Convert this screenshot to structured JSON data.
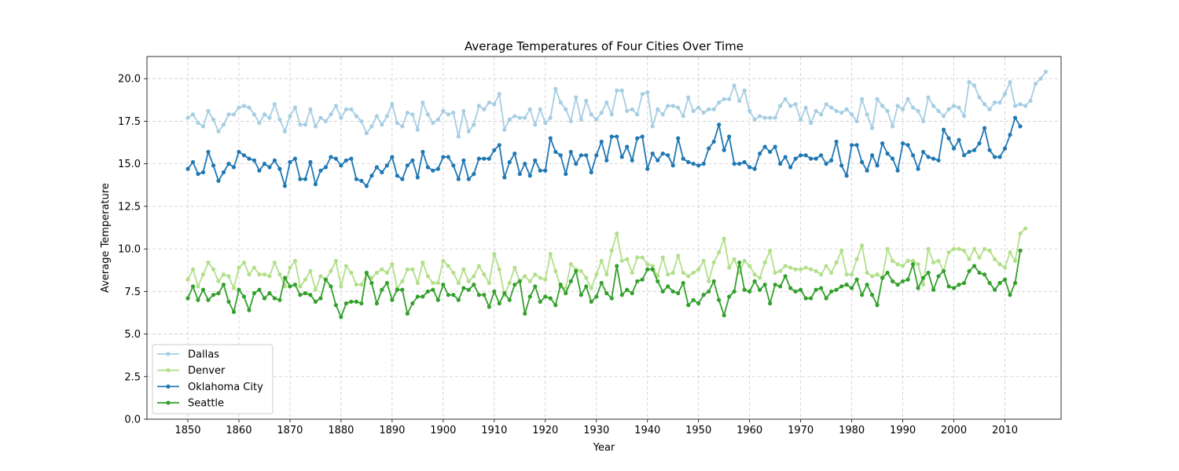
{
  "chart_data": {
    "type": "line",
    "title": "Average Temperatures of Four Cities Over Time",
    "xlabel": "Year",
    "ylabel": "Average Temperature",
    "xlim": [
      1842,
      2021
    ],
    "ylim": [
      0,
      21.3
    ],
    "xticks": [
      "1850",
      "1860",
      "1870",
      "1880",
      "1890",
      "1900",
      "1910",
      "1920",
      "1930",
      "1940",
      "1950",
      "1960",
      "1970",
      "1980",
      "1990",
      "2000",
      "2010"
    ],
    "yticks": [
      "0.0",
      "2.5",
      "5.0",
      "7.5",
      "10.0",
      "12.5",
      "15.0",
      "17.5",
      "20.0"
    ],
    "grid": true,
    "legend": "lower-left",
    "x_start": 1850,
    "x_end": 2013,
    "series": [
      {
        "name": "Dallas",
        "color": "#a6cee3",
        "values": [
          17.7,
          17.9,
          17.4,
          17.2,
          18.1,
          17.6,
          16.9,
          17.3,
          17.9,
          17.9,
          18.3,
          18.4,
          18.3,
          17.9,
          17.4,
          17.9,
          17.7,
          18.5,
          17.6,
          16.9,
          17.8,
          18.3,
          17.3,
          17.3,
          18.2,
          17.2,
          17.7,
          17.5,
          17.9,
          18.4,
          17.7,
          18.2,
          18.2,
          17.8,
          17.5,
          16.8,
          17.2,
          17.8,
          17.3,
          17.8,
          18.5,
          17.4,
          17.2,
          18.0,
          17.9,
          17.0,
          18.6,
          17.9,
          17.4,
          17.6,
          18.1,
          17.9,
          18.0,
          16.6,
          18.1,
          16.9,
          17.3,
          18.4,
          18.2,
          18.6,
          18.5,
          19.1,
          17.0,
          17.6,
          17.8,
          17.7,
          17.7,
          18.2,
          17.3,
          18.2,
          17.4,
          17.7,
          19.4,
          18.6,
          18.2,
          17.5,
          18.9,
          17.6,
          18.7,
          17.9,
          17.6,
          18.0,
          18.6,
          17.9,
          19.3,
          19.3,
          18.1,
          18.2,
          17.9,
          19.1,
          19.2,
          17.2,
          18.2,
          17.9,
          18.4,
          18.4,
          18.3,
          17.8,
          18.9,
          18.1,
          18.3,
          18.0,
          18.2,
          18.2,
          18.6,
          18.8,
          18.8,
          19.6,
          18.7,
          19.3,
          18.1,
          17.6,
          17.8,
          17.7,
          17.7,
          17.7,
          18.4,
          18.8,
          18.4,
          18.5,
          17.6,
          18.3,
          17.4,
          18.1,
          17.9,
          18.5,
          18.3,
          18.1,
          18.0,
          18.2,
          17.9,
          17.5,
          18.8,
          17.9,
          17.1,
          18.8,
          18.4,
          18.1,
          17.2,
          18.4,
          18.2,
          18.8,
          18.3,
          18.1,
          17.5,
          18.9,
          18.4,
          18.1,
          17.8,
          18.2,
          18.4,
          18.3,
          17.8,
          19.8,
          19.6,
          18.9,
          18.5,
          18.2,
          18.6,
          18.6,
          19.1,
          19.8,
          18.4,
          18.5,
          18.4,
          18.7,
          19.7,
          20.0,
          20.4
        ]
      },
      {
        "name": "Denver",
        "color": "#b2df8a",
        "values": [
          8.2,
          8.8,
          7.8,
          8.5,
          9.2,
          8.8,
          8.1,
          8.5,
          8.4,
          7.7,
          8.9,
          9.2,
          8.5,
          8.9,
          8.5,
          8.5,
          8.4,
          9.2,
          8.5,
          7.8,
          8.9,
          9.3,
          7.8,
          8.2,
          8.7,
          7.6,
          8.4,
          8.2,
          8.7,
          9.3,
          7.8,
          9.0,
          8.6,
          7.9,
          7.9,
          8.5,
          8.3,
          8.6,
          8.8,
          8.6,
          9.1,
          7.7,
          8.1,
          8.8,
          8.8,
          8.0,
          9.2,
          8.4,
          8.0,
          8.0,
          9.3,
          9.0,
          8.6,
          8.0,
          8.8,
          8.1,
          8.4,
          9.0,
          8.5,
          8.0,
          9.7,
          8.8,
          7.3,
          8.0,
          8.9,
          8.1,
          8.4,
          8.1,
          8.5,
          8.3,
          8.2,
          9.7,
          8.7,
          7.8,
          7.7,
          9.1,
          8.8,
          8.7,
          8.3,
          7.7,
          8.5,
          9.3,
          8.5,
          9.9,
          10.9,
          9.3,
          9.4,
          8.6,
          9.5,
          9.5,
          9.1,
          9.0,
          8.4,
          9.5,
          8.5,
          8.6,
          9.6,
          8.6,
          8.4,
          8.6,
          8.8,
          9.3,
          8.1,
          9.2,
          9.8,
          10.6,
          8.9,
          9.4,
          8.6,
          9.3,
          9.0,
          8.5,
          8.3,
          9.2,
          9.9,
          8.6,
          8.7,
          9.0,
          8.9,
          8.8,
          8.8,
          8.9,
          8.8,
          8.7,
          8.5,
          9.0,
          8.6,
          9.2,
          9.9,
          8.5,
          8.5,
          9.4,
          10.2,
          8.6,
          8.4,
          8.5,
          8.3,
          10.0,
          9.3,
          9.1,
          9.0,
          9.3,
          9.3,
          9.1,
          7.9,
          10.0,
          9.2,
          9.3,
          8.7,
          9.8,
          10.0,
          10.0,
          9.9,
          9.4,
          10.0,
          9.5,
          10.0,
          9.9,
          9.4,
          9.1,
          8.9,
          9.8,
          9.3,
          10.9,
          11.2
        ]
      },
      {
        "name": "Oklahoma City",
        "color": "#1f78b4",
        "values": [
          14.7,
          15.1,
          14.4,
          14.5,
          15.7,
          14.9,
          14.0,
          14.5,
          15.0,
          14.8,
          15.7,
          15.5,
          15.3,
          15.2,
          14.6,
          15.0,
          14.8,
          15.2,
          14.7,
          13.7,
          15.1,
          15.3,
          14.1,
          14.1,
          15.1,
          13.8,
          14.6,
          14.8,
          15.4,
          15.3,
          14.9,
          15.2,
          15.3,
          14.1,
          14.0,
          13.7,
          14.3,
          14.8,
          14.5,
          14.9,
          15.4,
          14.3,
          14.1,
          14.9,
          15.2,
          14.2,
          15.7,
          14.8,
          14.6,
          14.7,
          15.4,
          15.4,
          14.9,
          14.1,
          15.2,
          14.1,
          14.4,
          15.3,
          15.3,
          15.3,
          15.8,
          16.1,
          14.2,
          15.1,
          15.6,
          14.4,
          15.0,
          14.3,
          15.2,
          14.6,
          14.6,
          16.5,
          15.7,
          15.5,
          14.4,
          15.7,
          15.0,
          15.5,
          15.5,
          14.5,
          15.5,
          16.3,
          15.2,
          16.6,
          16.6,
          15.4,
          16.0,
          15.2,
          16.5,
          16.6,
          14.7,
          15.6,
          15.2,
          15.6,
          15.5,
          14.9,
          16.5,
          15.3,
          15.1,
          15.0,
          14.9,
          15.0,
          15.9,
          16.3,
          17.3,
          15.8,
          16.6,
          15.0,
          15.0,
          15.1,
          14.8,
          14.7,
          15.6,
          16.0,
          15.7,
          16.0,
          15.0,
          15.4,
          14.8,
          15.3,
          15.5,
          15.5,
          15.3,
          15.3,
          15.5,
          15.0,
          15.2,
          16.3,
          14.9,
          14.3,
          16.1,
          16.1,
          15.1,
          14.6,
          15.5,
          14.9,
          16.2,
          15.6,
          15.3,
          14.6,
          16.2,
          16.1,
          15.5,
          14.7,
          15.7,
          15.4,
          15.3,
          15.2,
          17.0,
          16.5,
          15.9,
          16.4,
          15.5,
          15.7,
          15.8,
          16.2,
          17.1,
          15.8,
          15.4,
          15.4,
          15.9,
          16.7,
          17.7,
          17.2
        ]
      },
      {
        "name": "Seattle",
        "color": "#33a02c",
        "values": [
          7.1,
          7.8,
          7.0,
          7.6,
          7.0,
          7.3,
          7.4,
          7.9,
          6.9,
          6.3,
          7.6,
          7.2,
          6.4,
          7.4,
          7.6,
          7.1,
          7.4,
          7.1,
          7.0,
          8.3,
          7.8,
          7.9,
          7.3,
          7.4,
          7.3,
          6.9,
          7.1,
          8.2,
          7.8,
          6.7,
          6.0,
          6.8,
          6.9,
          6.9,
          6.8,
          8.6,
          8.0,
          6.8,
          7.6,
          8.0,
          7.0,
          7.6,
          7.6,
          6.2,
          6.8,
          7.2,
          7.2,
          7.5,
          7.6,
          7.0,
          7.9,
          7.3,
          7.3,
          7.0,
          7.7,
          7.6,
          7.9,
          7.3,
          7.3,
          6.6,
          7.5,
          6.8,
          7.4,
          7.0,
          7.9,
          8.1,
          6.2,
          7.2,
          7.8,
          6.9,
          7.2,
          7.1,
          6.7,
          7.9,
          7.4,
          8.1,
          8.7,
          7.3,
          7.8,
          6.9,
          7.2,
          8.0,
          7.4,
          7.1,
          9.0,
          7.3,
          7.6,
          7.4,
          8.1,
          8.2,
          8.8,
          8.8,
          8.1,
          7.5,
          7.8,
          7.5,
          7.4,
          8.0,
          6.7,
          7.0,
          6.8,
          7.3,
          7.5,
          8.1,
          7.0,
          6.1,
          7.2,
          7.5,
          9.2,
          7.6,
          7.5,
          8.1,
          7.6,
          7.9,
          6.8,
          7.9,
          7.8,
          8.4,
          7.7,
          7.5,
          7.6,
          7.1,
          7.1,
          7.6,
          7.7,
          7.1,
          7.5,
          7.6,
          7.8,
          7.9,
          7.7,
          8.2,
          7.3,
          7.9,
          7.3,
          6.7,
          8.3,
          8.6,
          8.1,
          7.9,
          8.1,
          8.2,
          9.1,
          7.7,
          8.3,
          8.6,
          7.6,
          8.4,
          8.7,
          7.8,
          7.7,
          7.9,
          8.0,
          8.7,
          9.0,
          8.6,
          8.5,
          8.0,
          7.6,
          8.0,
          8.2,
          7.3,
          8.0,
          9.9
        ]
      }
    ]
  }
}
